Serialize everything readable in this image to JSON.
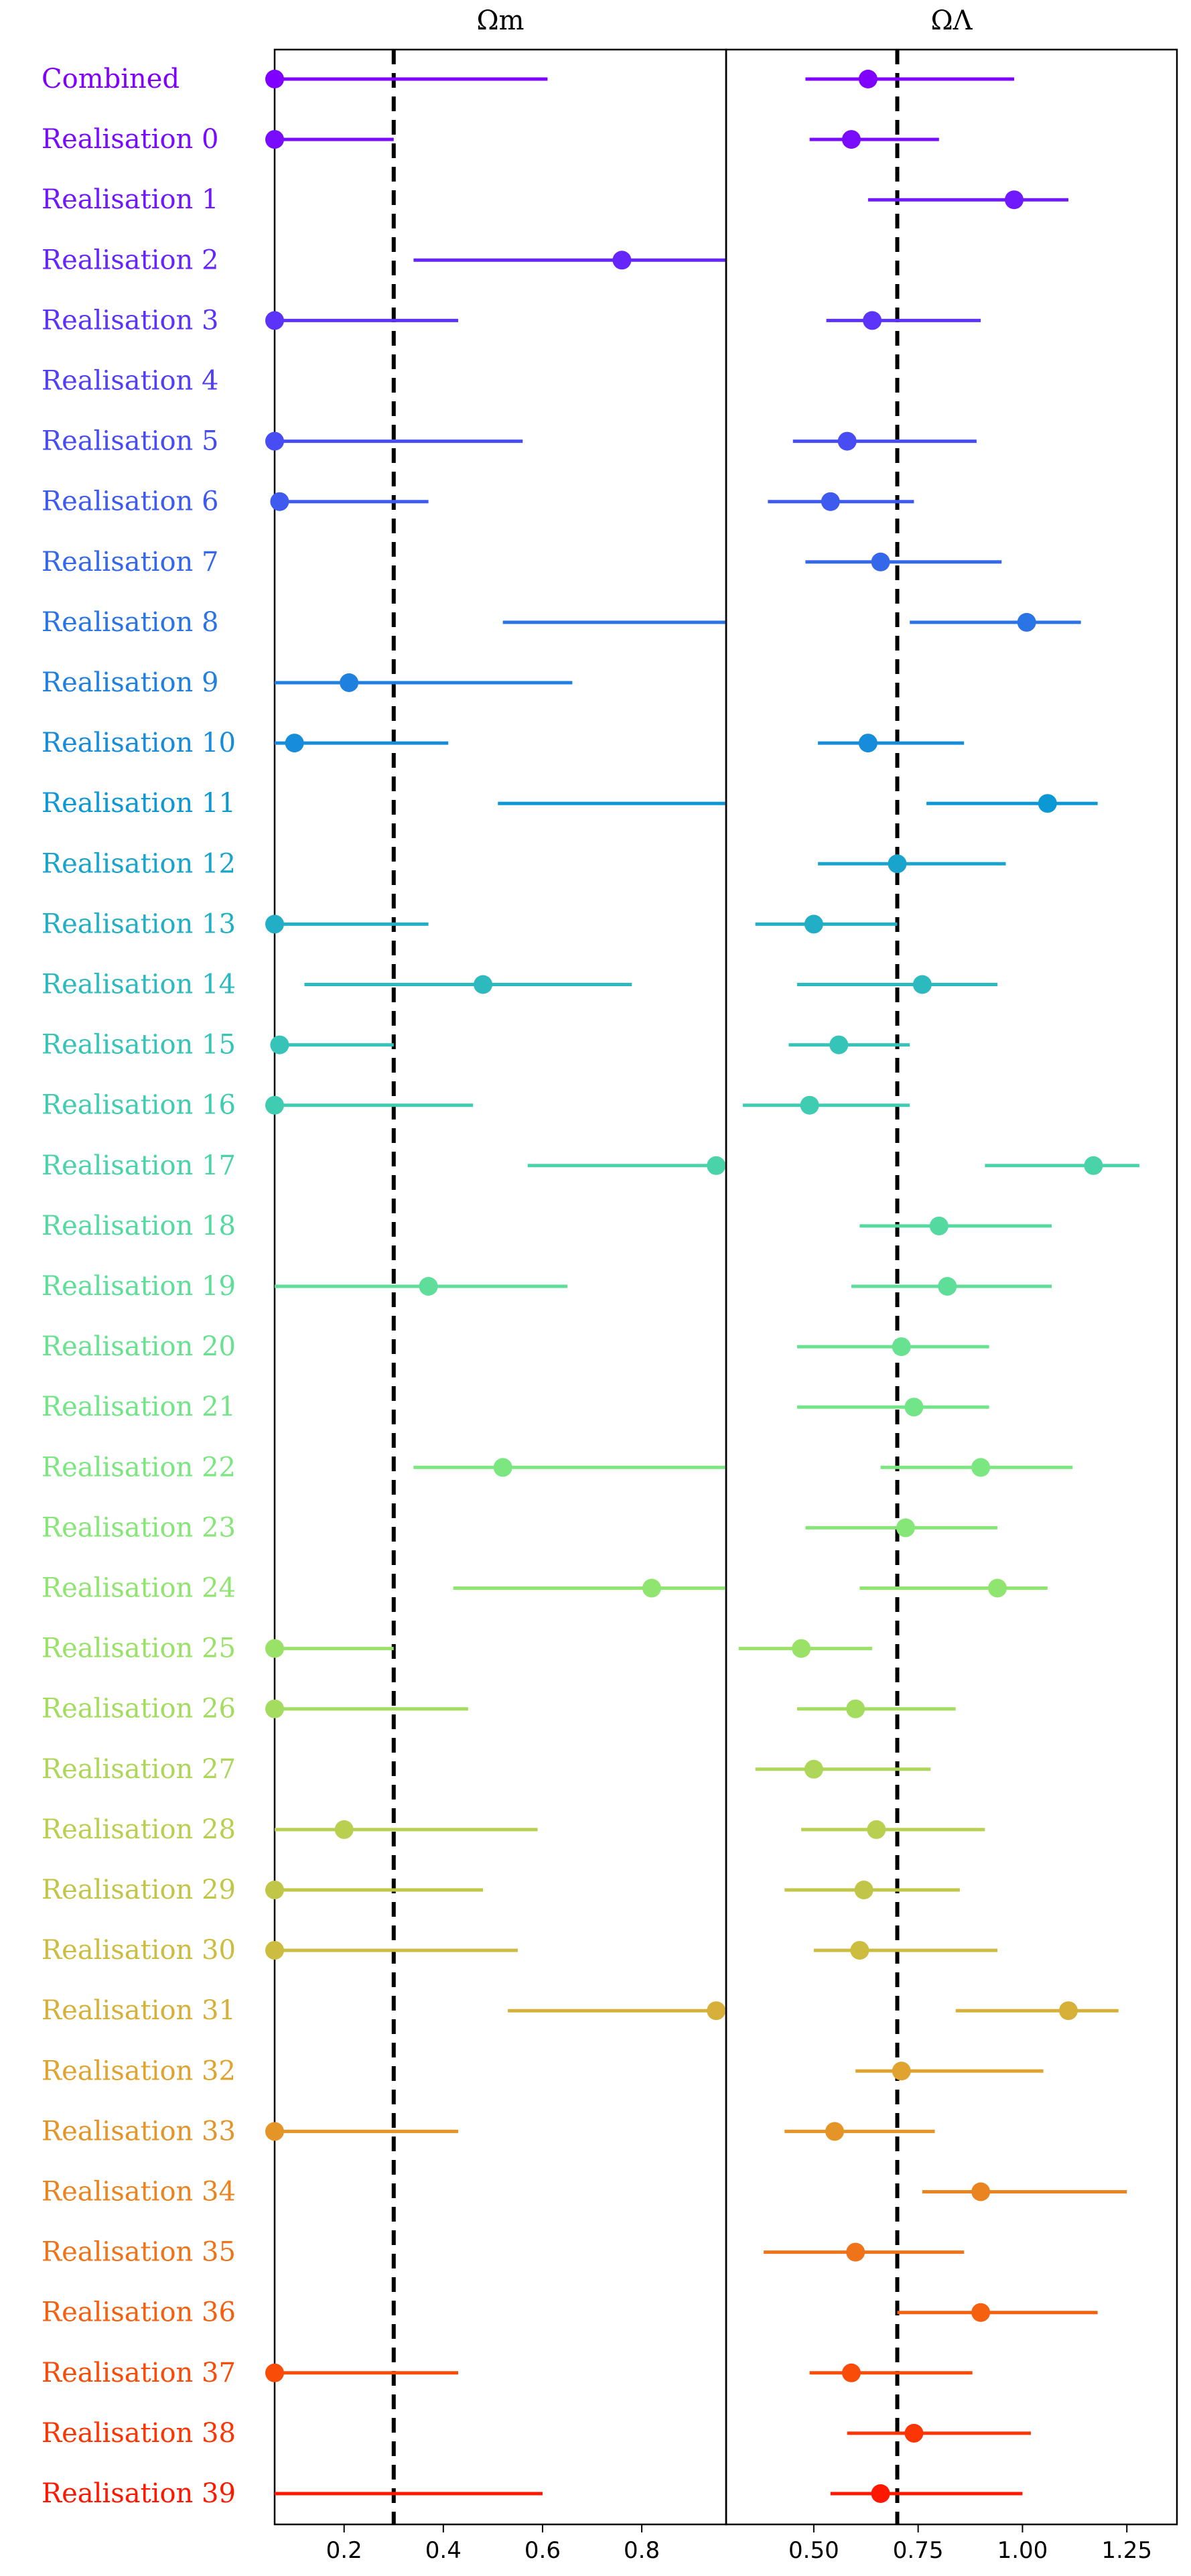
{
  "chart_data": [
    {
      "type": "scatter",
      "panel": "omega_m",
      "title": "Ωm",
      "xlim": [
        0.06,
        0.97
      ],
      "xticks": [
        0.2,
        0.4,
        0.6,
        0.8
      ],
      "xtick_labels": [
        "0.2",
        "0.4",
        "0.6",
        "0.8"
      ],
      "reference_line": 0.3,
      "grid": false
    },
    {
      "type": "scatter",
      "panel": "omega_lambda",
      "title": "ΩΛ",
      "xlim": [
        0.29,
        1.37
      ],
      "xticks": [
        0.5,
        0.75,
        1.0,
        1.25
      ],
      "xtick_labels": [
        "0.50",
        "0.75",
        "1.00",
        "1.25"
      ],
      "reference_line": 0.7,
      "grid": false
    }
  ],
  "rows": [
    {
      "label": "Combined",
      "om": [
        0.06,
        0.61,
        0.06
      ],
      "ol": [
        0.48,
        0.98,
        0.63
      ],
      "color": "#8000ff"
    },
    {
      "label": "Realisation 0",
      "om": [
        0.06,
        0.3,
        0.06
      ],
      "ol": [
        0.49,
        0.8,
        0.59
      ],
      "color": "#7a0cfe"
    },
    {
      "label": "Realisation 1",
      "om": null,
      "ol": [
        0.63,
        1.11,
        0.98
      ],
      "color": "#7019fd"
    },
    {
      "label": "Realisation 2",
      "om": [
        0.34,
        0.97,
        0.76
      ],
      "ol": null,
      "color": "#6626fb"
    },
    {
      "label": "Realisation 3",
      "om": [
        0.06,
        0.43,
        0.06
      ],
      "ol": [
        0.53,
        0.9,
        0.64
      ],
      "color": "#5c33f9"
    },
    {
      "label": "Realisation 4",
      "om": null,
      "ol": null,
      "color": "#5240f6"
    },
    {
      "label": "Realisation 5",
      "om": [
        0.06,
        0.56,
        0.06
      ],
      "ol": [
        0.45,
        0.89,
        0.58
      ],
      "color": "#484df3"
    },
    {
      "label": "Realisation 6",
      "om": [
        0.06,
        0.37,
        0.07
      ],
      "ol": [
        0.39,
        0.74,
        0.54
      ],
      "color": "#3e5aef"
    },
    {
      "label": "Realisation 7",
      "om": null,
      "ol": [
        0.48,
        0.95,
        0.66
      ],
      "color": "#3467ea"
    },
    {
      "label": "Realisation 8",
      "om": [
        0.52,
        0.97,
        null
      ],
      "ol": [
        0.73,
        1.14,
        1.01
      ],
      "color": "#2a74e5"
    },
    {
      "label": "Realisation 9",
      "om": [
        0.06,
        0.66,
        0.21
      ],
      "ol": null,
      "color": "#2080e0"
    },
    {
      "label": "Realisation 10",
      "om": [
        0.06,
        0.41,
        0.1
      ],
      "ol": [
        0.51,
        0.86,
        0.63
      ],
      "color": "#168cda"
    },
    {
      "label": "Realisation 11",
      "om": [
        0.51,
        0.97,
        null
      ],
      "ol": [
        0.77,
        1.18,
        1.06
      ],
      "color": "#0c98d4"
    },
    {
      "label": "Realisation 12",
      "om": null,
      "ol": [
        0.51,
        0.96,
        0.7
      ],
      "color": "#18a4cd"
    },
    {
      "label": "Realisation 13",
      "om": [
        0.06,
        0.37,
        0.06
      ],
      "ol": [
        0.36,
        0.7,
        0.5
      ],
      "color": "#22afc6"
    },
    {
      "label": "Realisation 14",
      "om": [
        0.12,
        0.78,
        0.48
      ],
      "ol": [
        0.46,
        0.94,
        0.76
      ],
      "color": "#2cbabf"
    },
    {
      "label": "Realisation 15",
      "om": [
        0.06,
        0.3,
        0.07
      ],
      "ol": [
        0.44,
        0.73,
        0.56
      ],
      "color": "#36c4b8"
    },
    {
      "label": "Realisation 16",
      "om": [
        0.06,
        0.46,
        0.06
      ],
      "ol": [
        0.33,
        0.73,
        0.49
      ],
      "color": "#40ccb0"
    },
    {
      "label": "Realisation 17",
      "om": [
        0.57,
        0.95,
        0.95
      ],
      "ol": [
        0.91,
        1.28,
        1.17
      ],
      "color": "#4ad3a8"
    },
    {
      "label": "Realisation 18",
      "om": null,
      "ol": [
        0.61,
        1.07,
        0.8
      ],
      "color": "#54d9a0"
    },
    {
      "label": "Realisation 19",
      "om": [
        0.06,
        0.65,
        0.37
      ],
      "ol": [
        0.59,
        1.07,
        0.82
      ],
      "color": "#5ede98"
    },
    {
      "label": "Realisation 20",
      "om": null,
      "ol": [
        0.46,
        0.92,
        0.71
      ],
      "color": "#68e290"
    },
    {
      "label": "Realisation 21",
      "om": null,
      "ol": [
        0.46,
        0.92,
        0.74
      ],
      "color": "#72e588"
    },
    {
      "label": "Realisation 22",
      "om": [
        0.34,
        0.97,
        0.52
      ],
      "ol": [
        0.66,
        1.12,
        0.9
      ],
      "color": "#7ce680"
    },
    {
      "label": "Realisation 23",
      "om": null,
      "ol": [
        0.48,
        0.94,
        0.72
      ],
      "color": "#86e678"
    },
    {
      "label": "Realisation 24",
      "om": [
        0.42,
        0.97,
        0.82
      ],
      "ol": [
        0.61,
        1.06,
        0.94
      ],
      "color": "#90e470"
    },
    {
      "label": "Realisation 25",
      "om": [
        0.06,
        0.3,
        0.06
      ],
      "ol": [
        0.32,
        0.64,
        0.47
      ],
      "color": "#9ae168"
    },
    {
      "label": "Realisation 26",
      "om": [
        0.06,
        0.45,
        0.06
      ],
      "ol": [
        0.46,
        0.84,
        0.6
      ],
      "color": "#a4dc60"
    },
    {
      "label": "Realisation 27",
      "om": null,
      "ol": [
        0.36,
        0.78,
        0.5
      ],
      "color": "#aed658"
    },
    {
      "label": "Realisation 28",
      "om": [
        0.06,
        0.59,
        0.2
      ],
      "ol": [
        0.47,
        0.91,
        0.65
      ],
      "color": "#b8cf50"
    },
    {
      "label": "Realisation 29",
      "om": [
        0.06,
        0.48,
        0.06
      ],
      "ol": [
        0.43,
        0.85,
        0.62
      ],
      "color": "#c2c648"
    },
    {
      "label": "Realisation 30",
      "om": [
        0.06,
        0.55,
        0.06
      ],
      "ol": [
        0.5,
        0.94,
        0.61
      ],
      "color": "#ccbc40"
    },
    {
      "label": "Realisation 31",
      "om": [
        0.53,
        0.95,
        0.95
      ],
      "ol": [
        0.84,
        1.23,
        1.11
      ],
      "color": "#d6b038"
    },
    {
      "label": "Realisation 32",
      "om": null,
      "ol": [
        0.6,
        1.05,
        0.71
      ],
      "color": "#e0a330"
    },
    {
      "label": "Realisation 33",
      "om": [
        0.06,
        0.43,
        0.06
      ],
      "ol": [
        0.43,
        0.79,
        0.55
      ],
      "color": "#e59428"
    },
    {
      "label": "Realisation 34",
      "om": null,
      "ol": [
        0.76,
        1.25,
        0.9
      ],
      "color": "#ea8420"
    },
    {
      "label": "Realisation 35",
      "om": null,
      "ol": [
        0.38,
        0.86,
        0.6
      ],
      "color": "#ef7318"
    },
    {
      "label": "Realisation 36",
      "om": null,
      "ol": [
        0.7,
        1.18,
        0.9
      ],
      "color": "#f46010"
    },
    {
      "label": "Realisation 37",
      "om": [
        0.06,
        0.43,
        0.06
      ],
      "ol": [
        0.49,
        0.88,
        0.59
      ],
      "color": "#f84c08"
    },
    {
      "label": "Realisation 38",
      "om": null,
      "ol": [
        0.58,
        1.02,
        0.74
      ],
      "color": "#fc3504"
    },
    {
      "label": "Realisation 39",
      "om": [
        0.06,
        0.6,
        null
      ],
      "ol": [
        0.54,
        1.0,
        0.66
      ],
      "color": "#ff1800"
    }
  ]
}
